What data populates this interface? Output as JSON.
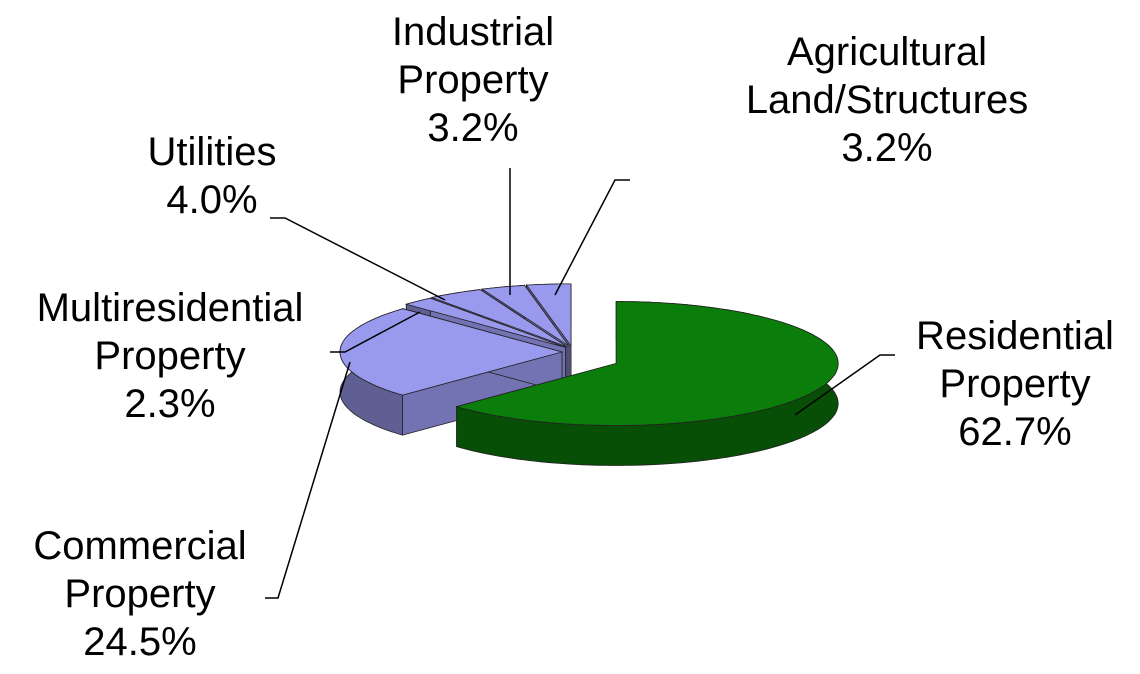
{
  "chart_data": {
    "type": "pie3d",
    "categories": [
      "Residential Property",
      "Commercial Property",
      "Multiresidential Property",
      "Utilities",
      "Industrial Property",
      "Agricultural Land/Structures"
    ],
    "values": [
      62.7,
      24.5,
      2.3,
      4.0,
      3.2,
      3.2
    ],
    "value_labels": [
      "62.7%",
      "24.5%",
      "2.3%",
      "4.0%",
      "3.2%",
      "3.2%"
    ],
    "colors": [
      "#0b7d0b",
      "#9999ee",
      "#9999ee",
      "#9999ee",
      "#9999ee",
      "#9999ee"
    ]
  }
}
